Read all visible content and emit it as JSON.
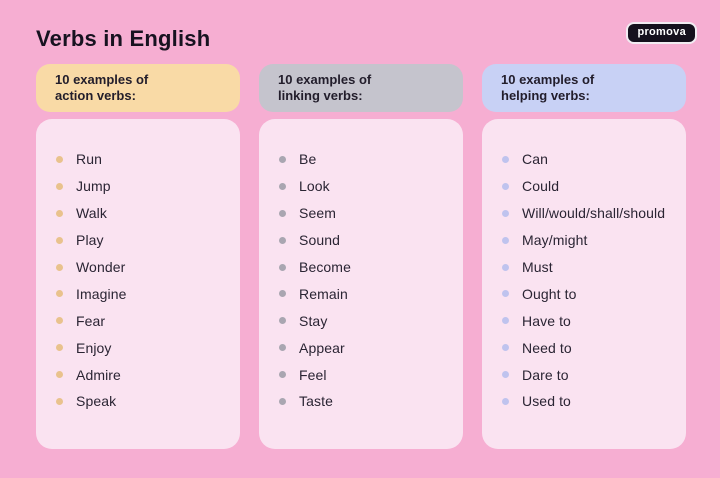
{
  "page": {
    "title": "Verbs in English",
    "logo": "promova"
  },
  "colors": {
    "background": "#F6AED2",
    "card_background": "#FAE3F1",
    "text": "#1C1726",
    "logo_background": "#15111D",
    "logo_text": "#FFFFFF"
  },
  "columns": [
    {
      "id": "action-verbs",
      "header_line1": "10 examples of",
      "header_line2": "action verbs:",
      "header_bg": "#F9DAA6",
      "bullet_color": "#E9C28D",
      "items": [
        "Run",
        "Jump",
        "Walk",
        "Play",
        "Wonder",
        "Imagine",
        "Fear",
        "Enjoy",
        "Admire",
        "Speak"
      ]
    },
    {
      "id": "linking-verbs",
      "header_line1": "10 examples of",
      "header_line2": "linking verbs:",
      "header_bg": "#C5C4CD",
      "bullet_color": "#A9A6B1",
      "items": [
        "Be",
        "Look",
        "Seem",
        "Sound",
        "Become",
        "Remain",
        "Stay",
        "Appear",
        "Feel",
        "Taste"
      ]
    },
    {
      "id": "helping-verbs",
      "header_line1": "10 examples of",
      "header_line2": "helping verbs:",
      "header_bg": "#C8D1F5",
      "bullet_color": "#BFC3EE",
      "items": [
        "Can",
        "Could",
        "Will/would/shall/should",
        "May/might",
        "Must",
        "Ought to",
        "Have to",
        "Need to",
        "Dare to",
        "Used to"
      ]
    }
  ]
}
